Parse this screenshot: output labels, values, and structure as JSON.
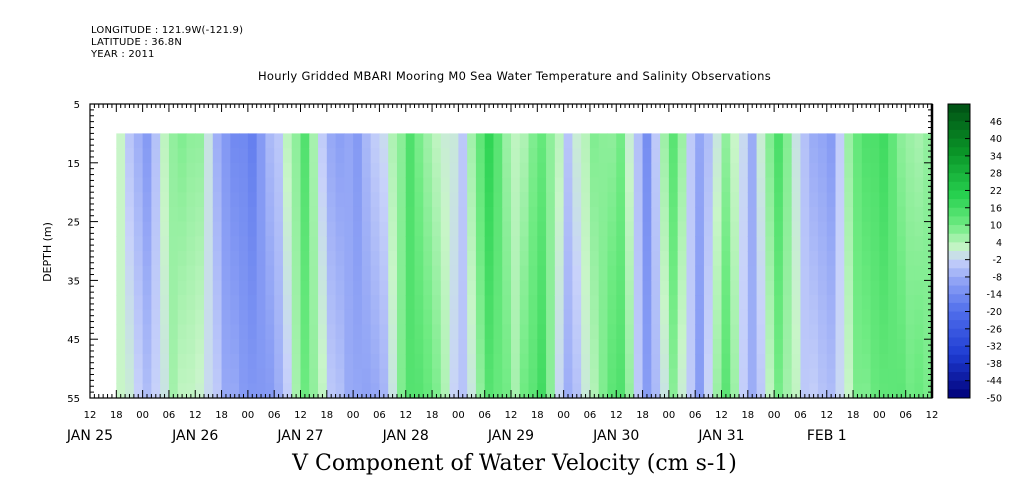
{
  "header": {
    "longitude": "LONGITUDE : 121.9W(-121.9)",
    "latitude": "LATITUDE : 36.8N",
    "year": "YEAR : 2011"
  },
  "chart_data": {
    "type": "heatmap",
    "title": "Hourly Gridded MBARI Mooring M0 Sea Water Temperature and Salinity Observations",
    "xlabel": "",
    "ylabel": "DEPTH (m)",
    "caption": "V Component of Water Velocity (cm s-1)",
    "y_ticks": [
      5,
      15,
      25,
      35,
      45,
      55
    ],
    "ylim": [
      5,
      55
    ],
    "data_depth_range": [
      10,
      55
    ],
    "x_hour_ticks": [
      "12",
      "18",
      "00",
      "06",
      "12",
      "18",
      "00",
      "06",
      "12",
      "18",
      "00",
      "06",
      "12",
      "18",
      "00",
      "06",
      "12",
      "18",
      "00",
      "06",
      "12",
      "18",
      "00",
      "06",
      "12",
      "18",
      "00",
      "06",
      "12",
      "18",
      "00",
      "06",
      "12"
    ],
    "x_day_labels": [
      "JAN 25",
      "JAN 26",
      "JAN 27",
      "JAN 28",
      "JAN 29",
      "JAN 30",
      "JAN 31",
      "FEB  1"
    ],
    "xlim_hours": [
      0,
      192
    ],
    "data_time_range_hours": [
      6,
      192
    ],
    "colorbar": {
      "labels": [
        46,
        40,
        34,
        28,
        22,
        16,
        10,
        4,
        -2,
        -8,
        -14,
        -20,
        -26,
        -32,
        -38,
        -44,
        -50
      ],
      "range": [
        -50,
        52
      ]
    },
    "v_velocity_bands": [
      {
        "t_start": 6,
        "t_end": 12,
        "mean": 2
      },
      {
        "t_start": 12,
        "t_end": 18,
        "mean": -8
      },
      {
        "t_start": 18,
        "t_end": 24,
        "mean": 6
      },
      {
        "t_start": 24,
        "t_end": 30,
        "mean": 4
      },
      {
        "t_start": 30,
        "t_end": 36,
        "mean": -10
      },
      {
        "t_start": 36,
        "t_end": 42,
        "mean": -14
      },
      {
        "t_start": 42,
        "t_end": 48,
        "mean": -6
      },
      {
        "t_start": 48,
        "t_end": 54,
        "mean": 12
      },
      {
        "t_start": 54,
        "t_end": 60,
        "mean": -6
      },
      {
        "t_start": 60,
        "t_end": 66,
        "mean": -10
      },
      {
        "t_start": 66,
        "t_end": 72,
        "mean": -4
      },
      {
        "t_start": 72,
        "t_end": 78,
        "mean": 14
      },
      {
        "t_start": 78,
        "t_end": 84,
        "mean": 6
      },
      {
        "t_start": 84,
        "t_end": 90,
        "mean": -4
      },
      {
        "t_start": 90,
        "t_end": 96,
        "mean": 16
      },
      {
        "t_start": 96,
        "t_end": 102,
        "mean": 4
      },
      {
        "t_start": 102,
        "t_end": 108,
        "mean": 14
      },
      {
        "t_start": 108,
        "t_end": 114,
        "mean": -6
      },
      {
        "t_start": 114,
        "t_end": 120,
        "mean": 6
      },
      {
        "t_start": 120,
        "t_end": 126,
        "mean": 12
      },
      {
        "t_start": 126,
        "t_end": 132,
        "mean": -12
      },
      {
        "t_start": 132,
        "t_end": 138,
        "mean": 10
      },
      {
        "t_start": 138,
        "t_end": 144,
        "mean": -10
      },
      {
        "t_start": 144,
        "t_end": 150,
        "mean": 10
      },
      {
        "t_start": 150,
        "t_end": 156,
        "mean": -8
      },
      {
        "t_start": 156,
        "t_end": 162,
        "mean": 12
      },
      {
        "t_start": 162,
        "t_end": 168,
        "mean": -4
      },
      {
        "t_start": 168,
        "t_end": 174,
        "mean": -8
      },
      {
        "t_start": 174,
        "t_end": 180,
        "mean": 10
      },
      {
        "t_start": 180,
        "t_end": 186,
        "mean": 14
      },
      {
        "t_start": 186,
        "t_end": 192,
        "mean": 8
      }
    ]
  }
}
